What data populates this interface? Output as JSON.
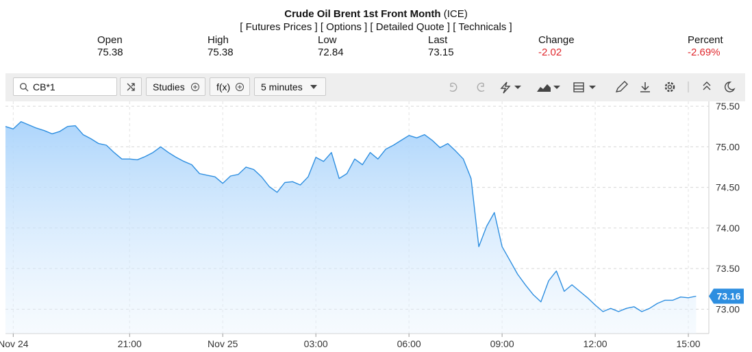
{
  "header": {
    "title": "Crude Oil Brent 1st Front Month",
    "exchange": "(ICE)",
    "links": "[ Futures Prices ] [ Options ] [ Detailed Quote ] [ Technicals ]"
  },
  "quote": [
    {
      "label": "Open",
      "value": "75.38"
    },
    {
      "label": "High",
      "value": "75.38"
    },
    {
      "label": "Low",
      "value": "72.84"
    },
    {
      "label": "Last",
      "value": "73.15"
    },
    {
      "label": "Change",
      "value": "-2.02"
    },
    {
      "label": "Percent",
      "value": "-2.69%"
    }
  ],
  "toolbar": {
    "symbol": "CB*1",
    "studies": "Studies",
    "fx": "f(x)",
    "interval": "5 minutes"
  },
  "chart_data": {
    "type": "area",
    "categories": [
      null,
      "Nov 24",
      null,
      null,
      null,
      null,
      null,
      null,
      null,
      null,
      null,
      null,
      null,
      null,
      null,
      null,
      "21:00",
      null,
      null,
      null,
      null,
      null,
      null,
      null,
      null,
      null,
      null,
      null,
      "Nov 25",
      null,
      null,
      null,
      null,
      null,
      null,
      null,
      null,
      null,
      null,
      null,
      "03:00",
      null,
      null,
      null,
      null,
      null,
      null,
      null,
      null,
      null,
      null,
      null,
      "06:00",
      null,
      null,
      null,
      null,
      null,
      null,
      null,
      null,
      null,
      null,
      null,
      "09:00",
      null,
      null,
      null,
      null,
      null,
      null,
      null,
      null,
      null,
      null,
      null,
      "12:00",
      null,
      null,
      null,
      null,
      null,
      null,
      null,
      null,
      null,
      null,
      null,
      "15:00",
      null
    ],
    "series": [
      {
        "name": "CB*1",
        "color": "#2d8ee0",
        "values": [
          75.25,
          75.22,
          75.31,
          75.27,
          75.23,
          75.2,
          75.16,
          75.19,
          75.25,
          75.26,
          75.15,
          75.1,
          75.04,
          75.02,
          74.93,
          74.85,
          74.85,
          74.84,
          74.88,
          74.93,
          75.0,
          74.93,
          74.87,
          74.82,
          74.78,
          74.67,
          74.65,
          74.63,
          74.55,
          74.64,
          74.66,
          74.75,
          74.72,
          74.63,
          74.51,
          74.44,
          74.56,
          74.57,
          74.53,
          74.63,
          74.87,
          74.82,
          74.93,
          74.61,
          74.67,
          74.85,
          74.78,
          74.93,
          74.85,
          74.97,
          75.02,
          75.08,
          75.14,
          75.11,
          75.15,
          75.08,
          74.99,
          75.04,
          74.95,
          74.85,
          74.61,
          73.77,
          74.02,
          74.19,
          73.77,
          73.6,
          73.43,
          73.3,
          73.18,
          73.09,
          73.35,
          73.47,
          73.22,
          73.3,
          73.22,
          73.14,
          73.05,
          72.97,
          73.01,
          72.97,
          73.01,
          73.03,
          72.97,
          73.01,
          73.07,
          73.11,
          73.11,
          73.15,
          73.14,
          73.16
        ]
      }
    ],
    "last_value": 73.16,
    "ylim": [
      72.7,
      75.56
    ],
    "yticks": [
      {
        "value": 73,
        "label": "73.00"
      },
      {
        "value": 73.5,
        "label": "73.50"
      },
      {
        "value": 74,
        "label": "74.00"
      },
      {
        "value": 74.5,
        "label": "74.50"
      },
      {
        "value": 75,
        "label": "75.00"
      },
      {
        "value": 75.5,
        "label": "75.50"
      }
    ],
    "grid": true
  }
}
